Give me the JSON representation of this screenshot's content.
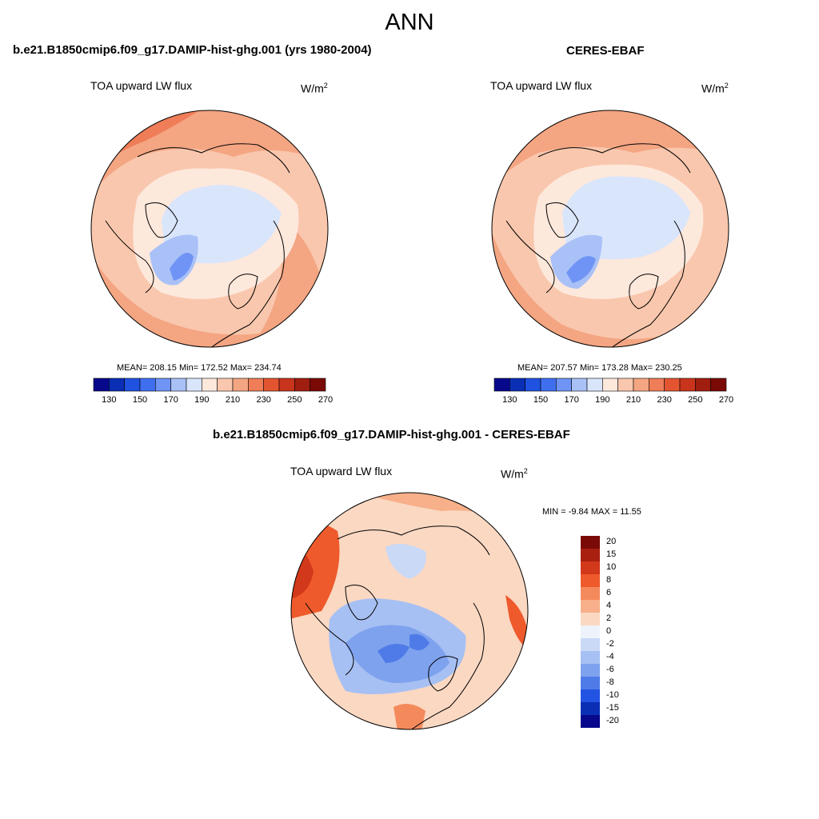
{
  "main_title": "ANN",
  "panels": [
    {
      "title": "b.e21.B1850cmip6.f09_g17.DAMIP-hist-ghg.001 (yrs 1980-2004)",
      "variable": "TOA upward LW flux",
      "units_base": "W/m",
      "units_exp": "2",
      "stats": "MEAN= 208.15  Min= 172.52  Max= 234.74",
      "colorbar_ticks": [
        "130",
        "150",
        "170",
        "190",
        "210",
        "230",
        "250",
        "270"
      ]
    },
    {
      "title": "CERES-EBAF",
      "variable": "TOA upward LW flux",
      "units_base": "W/m",
      "units_exp": "2",
      "stats": "MEAN= 207.57  Min= 173.28  Max= 230.25",
      "colorbar_ticks": [
        "130",
        "150",
        "170",
        "190",
        "210",
        "230",
        "250",
        "270"
      ]
    }
  ],
  "diff_panel": {
    "title": "b.e21.B1850cmip6.f09_g17.DAMIP-hist-ghg.001 - CERES-EBAF",
    "variable": "TOA upward LW flux",
    "units_base": "W/m",
    "units_exp": "2",
    "stats": "MIN =  -9.84 MAX =  11.55",
    "colorbar_ticks": [
      "20",
      "15",
      "10",
      "8",
      "6",
      "4",
      "2",
      "0",
      "-2",
      "-4",
      "-6",
      "-8",
      "-10",
      "-15",
      "-20"
    ]
  },
  "colors": {
    "abs_scale": [
      "#08088c",
      "#0a2fb5",
      "#1f52e0",
      "#3f6fef",
      "#6f94f5",
      "#a9c1f7",
      "#d9e5fb",
      "#fde8dc",
      "#f9c7ad",
      "#f4a582",
      "#ee7d58",
      "#e35530",
      "#c8341c",
      "#a01e10",
      "#7a0a06"
    ],
    "diff_scale": [
      "#7a0a06",
      "#a92010",
      "#d2381a",
      "#ee5a2c",
      "#f48a5c",
      "#f7b08a",
      "#fbd8c2",
      "#eef3fb",
      "#c9d9f6",
      "#a7c0f3",
      "#7ea2ee",
      "#4f7be9",
      "#2253e2",
      "#0a2fb5",
      "#08088c"
    ]
  }
}
